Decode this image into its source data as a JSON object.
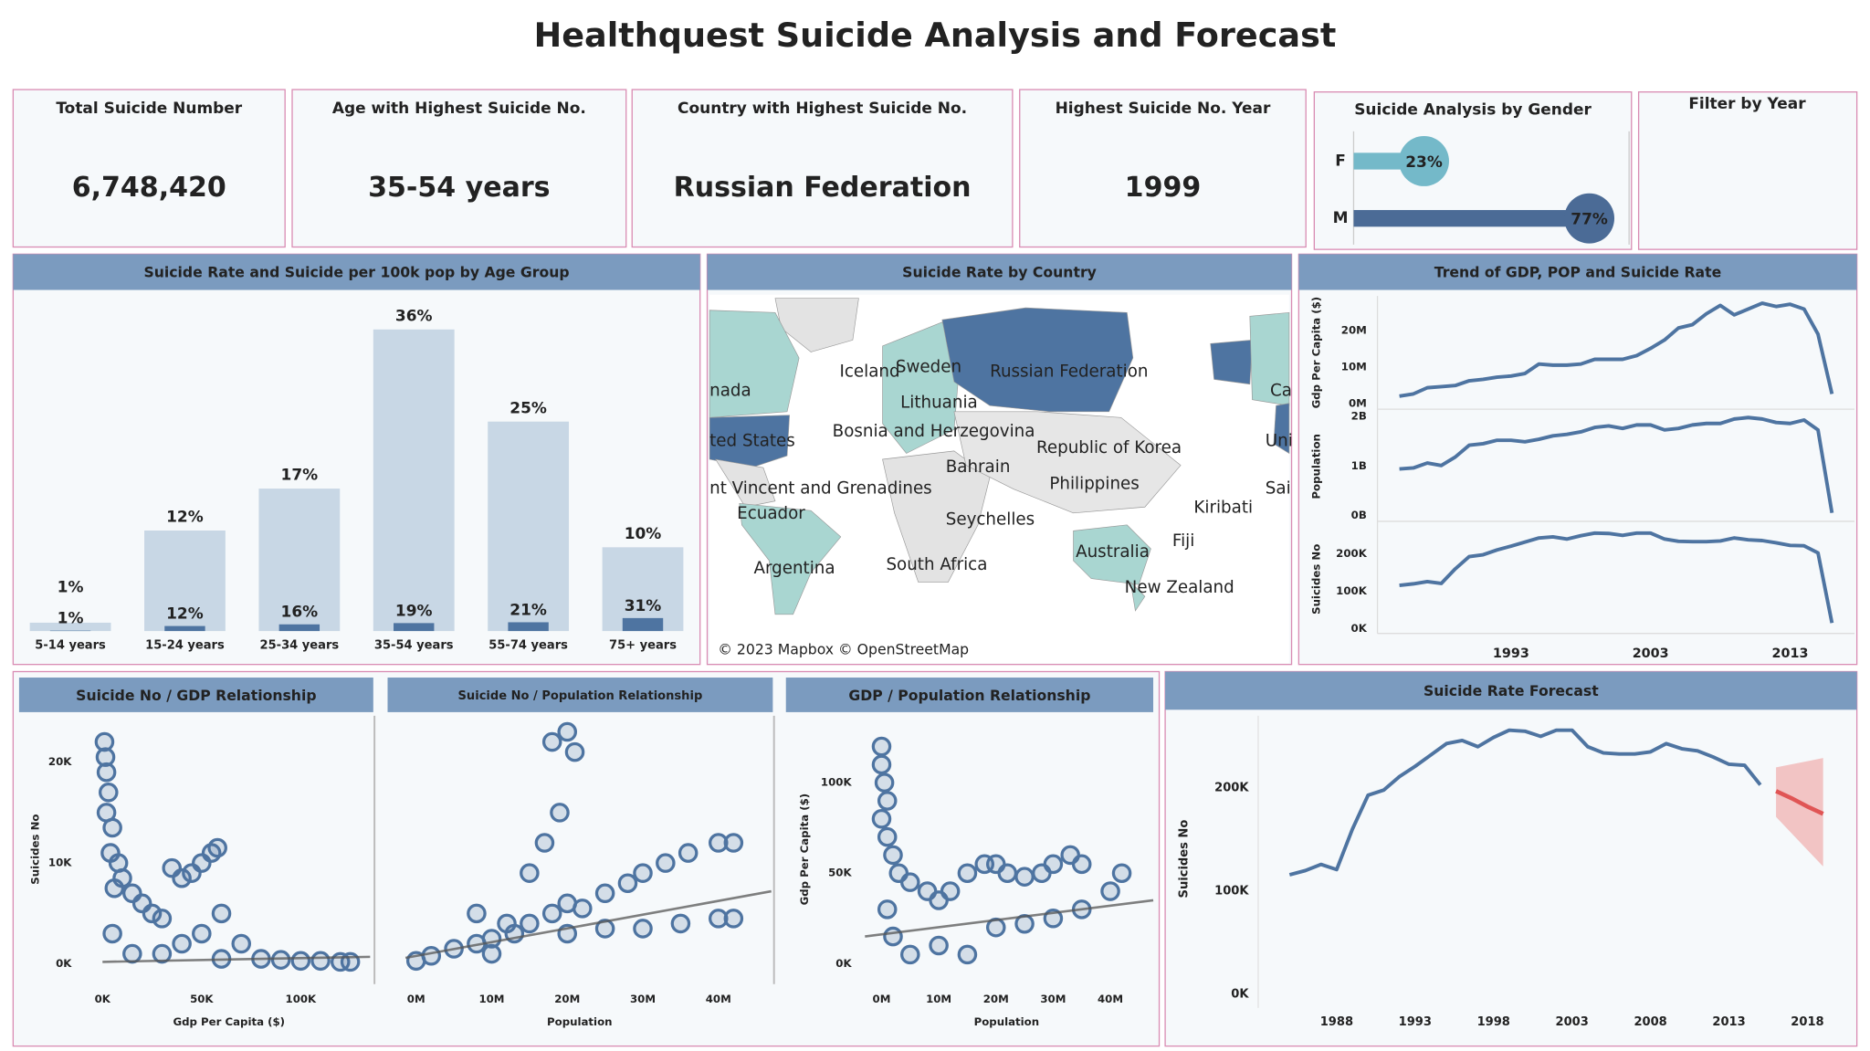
{
  "title": "Healthquest Suicide Analysis and Forecast",
  "kpis": [
    {
      "label": "Total Suicide Number",
      "value": "6,748,420"
    },
    {
      "label": "Age with Highest Suicide No.",
      "value": "35-54 years"
    },
    {
      "label": "Country with Highest Suicide No.",
      "value": "Russian Federation"
    },
    {
      "label": "Highest Suicide No. Year",
      "value": "1999"
    }
  ],
  "filter": {
    "title": "Filter by Year"
  },
  "chart_data": [
    {
      "type": "hbar",
      "title": "Suicide Analysis by Gender",
      "categories": [
        "F",
        "M"
      ],
      "values": [
        23,
        77
      ],
      "value_labels": [
        "23%",
        "77%"
      ],
      "colors": [
        "#74b9c9",
        "#4b6b96"
      ],
      "xlim": [
        0,
        90
      ]
    },
    {
      "type": "bar",
      "title": "Suicide Rate and Suicide per 100k pop by Age Group",
      "categories": [
        "5-14 years",
        "15-24 years",
        "25-34 years",
        "35-54 years",
        "55-74 years",
        "75+ years"
      ],
      "series": [
        {
          "color": "#c8d7e5",
          "values": [
            1,
            12,
            17,
            36,
            25,
            10
          ],
          "value_labels": [
            "1%",
            "12%",
            "17%",
            "36%",
            "25%",
            "10%"
          ]
        },
        {
          "color": "#4e74a1",
          "axis": "y2",
          "values": [
            1,
            12,
            16,
            19,
            21,
            31
          ],
          "value_labels": [
            "1%",
            "12%",
            "16%",
            "19%",
            "21%",
            "31%"
          ]
        }
      ],
      "ylim": [
        0,
        40
      ],
      "y2lim": [
        0,
        800
      ]
    },
    {
      "type": "map",
      "title": "Suicide Rate by Country",
      "labels": [
        "nada",
        "Iceland",
        "Sweden",
        "Russian Federation",
        "Ca",
        "Lithuania",
        "Bosnia and Herzegovina",
        "ted States",
        "Uni",
        "Republic of Korea",
        "Bahrain",
        "Philippines",
        "nt Vincent and Grenadines",
        "Sai",
        "Ecuador",
        "Kiribati",
        "Seychelles",
        "Fiji",
        "Australia",
        "Argentina",
        "South Africa",
        "New Zealand"
      ],
      "attribution": "© 2023 Mapbox © OpenStreetMap"
    },
    {
      "type": "line",
      "title": "Trend of GDP, POP and Suicide Rate",
      "color": "#4e74a1",
      "x": [
        1985,
        1986,
        1987,
        1988,
        1989,
        1990,
        1991,
        1992,
        1993,
        1994,
        1995,
        1996,
        1997,
        1998,
        1999,
        2000,
        2001,
        2002,
        2003,
        2004,
        2005,
        2006,
        2007,
        2008,
        2009,
        2010,
        2011,
        2012,
        2013,
        2014,
        2015,
        2016
      ],
      "xlim": [
        1983,
        2018
      ],
      "xticks": [
        1993,
        2003,
        2013
      ],
      "panels": [
        {
          "ylabel": "Gdp Per Capita ($)",
          "ylim": [
            -1600000,
            29500000
          ],
          "yticks": [
            {
              "value": 0,
              "label": "0M"
            },
            {
              "value": 10000000,
              "label": "10M"
            },
            {
              "value": 20000000,
              "label": "20M"
            }
          ],
          "values": [
            2000000,
            2600000,
            4300000,
            4600000,
            4900000,
            6200000,
            6600000,
            7200000,
            7500000,
            8200000,
            10800000,
            10500000,
            10500000,
            10800000,
            12100000,
            12100000,
            12100000,
            13100000,
            15100000,
            17400000,
            20700000,
            21600000,
            24600000,
            26900000,
            24300000,
            25900000,
            27500000,
            26600000,
            27200000,
            25900000,
            19000000,
            2600000
          ]
        },
        {
          "ylabel": "Population",
          "ylim": [
            -120000000,
            2100000000
          ],
          "yticks": [
            {
              "value": 0,
              "label": "0B"
            },
            {
              "value": 1000000000,
              "label": "1B"
            },
            {
              "value": 2000000000,
              "label": "2B"
            }
          ],
          "values": [
            940000000,
            960000000,
            1060000000,
            1010000000,
            1180000000,
            1420000000,
            1450000000,
            1520000000,
            1520000000,
            1490000000,
            1540000000,
            1610000000,
            1640000000,
            1690000000,
            1780000000,
            1810000000,
            1760000000,
            1830000000,
            1830000000,
            1730000000,
            1760000000,
            1830000000,
            1860000000,
            1860000000,
            1950000000,
            1980000000,
            1950000000,
            1880000000,
            1860000000,
            1930000000,
            1730000000,
            50000000
          ]
        },
        {
          "ylabel": "Suicides No",
          "ylim": [
            -13000,
            278000
          ],
          "yticks": [
            {
              "value": 0,
              "label": "0K"
            },
            {
              "value": 100000,
              "label": "100K"
            },
            {
              "value": 200000,
              "label": "200K"
            }
          ],
          "values": [
            116000,
            120000,
            126000,
            121000,
            160000,
            193000,
            198000,
            211000,
            221000,
            232000,
            243000,
            246000,
            240000,
            249000,
            256000,
            255000,
            250000,
            256000,
            256000,
            240000,
            234000,
            233000,
            233000,
            235000,
            243000,
            238000,
            236000,
            230000,
            223000,
            222000,
            203000,
            15000
          ]
        }
      ]
    },
    {
      "type": "scatter",
      "title": "Suicide No / GDP Relationship",
      "xlabel": "Gdp Per Capita ($)",
      "ylabel": "Suicides No",
      "color": "#4e74a1",
      "x": [
        1000,
        1500,
        2000,
        3000,
        2000,
        5000,
        4000,
        8000,
        10000,
        6000,
        15000,
        20000,
        25000,
        30000,
        35000,
        40000,
        45000,
        50000,
        55000,
        58000,
        60000,
        50000,
        40000,
        70000,
        80000,
        90000,
        100000,
        110000,
        120000,
        125000,
        5000,
        15000,
        30000,
        60000
      ],
      "values": [
        22000,
        20500,
        19000,
        17000,
        15000,
        13500,
        11000,
        10000,
        8500,
        7500,
        7000,
        6000,
        5000,
        4500,
        9500,
        8500,
        9000,
        10000,
        11000,
        11500,
        5000,
        3000,
        2000,
        2000,
        500,
        400,
        300,
        300,
        200,
        200,
        3000,
        1000,
        1000,
        500
      ],
      "xlim": [
        -9600,
        136000
      ],
      "ylim": [
        -2000,
        24600
      ],
      "xticks": [
        {
          "value": 0,
          "label": "0K"
        },
        {
          "value": 50000,
          "label": "50K"
        },
        {
          "value": 100000,
          "label": "100K"
        }
      ],
      "yticks": [
        {
          "value": 0,
          "label": "0K"
        },
        {
          "value": 10000,
          "label": "10K"
        },
        {
          "value": 20000,
          "label": "20K"
        }
      ],
      "trendline": {
        "x": [
          0,
          135000
        ],
        "values": [
          200,
          700
        ]
      }
    },
    {
      "type": "scatter",
      "title": "Suicide No / Population Relationship",
      "xlabel": "Population",
      "color": "#4e74a1",
      "x": [
        0,
        2000000,
        5000000,
        8000000,
        10000000,
        13000000,
        15000000,
        18000000,
        20000000,
        22000000,
        25000000,
        28000000,
        30000000,
        33000000,
        36000000,
        40000000,
        42000000,
        20000000,
        25000000,
        30000000,
        35000000,
        40000000,
        42000000,
        10000000,
        15000000,
        17000000,
        18000000,
        20000000,
        21000000,
        19000000,
        8000000,
        12000000
      ],
      "values": [
        300,
        800,
        1500,
        2000,
        2500,
        3000,
        4000,
        5000,
        6000,
        5500,
        7000,
        8000,
        9000,
        10000,
        11000,
        12000,
        12000,
        3000,
        3500,
        3500,
        4000,
        4500,
        4500,
        1000,
        9000,
        12000,
        22000,
        23000,
        21000,
        15000,
        5000,
        4000
      ],
      "xlim": [
        -3300000,
        47200000
      ],
      "ylim": [
        -2000,
        24600
      ],
      "xticks": [
        {
          "value": 0,
          "label": "0M"
        },
        {
          "value": 10000000,
          "label": "10M"
        },
        {
          "value": 20000000,
          "label": "20M"
        },
        {
          "value": 30000000,
          "label": "30M"
        },
        {
          "value": 40000000,
          "label": "40M"
        }
      ],
      "trendline": {
        "x": [
          -1400000,
          47000000
        ],
        "values": [
          600,
          7200
        ]
      }
    },
    {
      "type": "scatter",
      "title": "GDP / Population Relationship",
      "xlabel": "Population",
      "ylabel": "Gdp Per Capita ($)",
      "color": "#4e74a1",
      "x": [
        0,
        0,
        500000,
        1000000,
        0,
        1000000,
        2000000,
        3000000,
        5000000,
        8000000,
        10000000,
        12000000,
        15000000,
        18000000,
        20000000,
        22000000,
        25000000,
        28000000,
        30000000,
        33000000,
        35000000,
        20000000,
        25000000,
        30000000,
        35000000,
        40000000,
        42000000,
        10000000,
        15000000,
        5000000,
        2000000,
        1000000
      ],
      "values": [
        120000,
        110000,
        100000,
        90000,
        80000,
        70000,
        60000,
        50000,
        45000,
        40000,
        35000,
        40000,
        50000,
        55000,
        55000,
        50000,
        48000,
        50000,
        55000,
        60000,
        55000,
        20000,
        22000,
        25000,
        30000,
        40000,
        50000,
        10000,
        5000,
        5000,
        15000,
        30000
      ],
      "xlim": [
        -4000000,
        47500000
      ],
      "ylim": [
        -11300,
        137000
      ],
      "xticks": [
        {
          "value": 0,
          "label": "0M"
        },
        {
          "value": 10000000,
          "label": "10M"
        },
        {
          "value": 20000000,
          "label": "20M"
        },
        {
          "value": 30000000,
          "label": "30M"
        },
        {
          "value": 40000000,
          "label": "40M"
        }
      ],
      "yticks": [
        {
          "value": 0,
          "label": "0K"
        },
        {
          "value": 50000,
          "label": "50K"
        },
        {
          "value": 100000,
          "label": "100K"
        }
      ],
      "trendline": {
        "x": [
          -2900000,
          47500000
        ],
        "values": [
          15000,
          35000
        ]
      }
    },
    {
      "type": "line",
      "title": "Suicide Rate Forecast",
      "ylabel": "Suicides No",
      "color": "#4e74a1",
      "x": [
        1985,
        1986,
        1987,
        1988,
        1989,
        1990,
        1991,
        1992,
        1993,
        1994,
        1995,
        1996,
        1997,
        1998,
        1999,
        2000,
        2001,
        2002,
        2003,
        2004,
        2005,
        2006,
        2007,
        2008,
        2009,
        2010,
        2011,
        2012,
        2013,
        2014,
        2015
      ],
      "values": [
        116000,
        120000,
        126000,
        121000,
        160000,
        193000,
        198000,
        211000,
        221000,
        232000,
        243000,
        246000,
        240000,
        249000,
        256000,
        255000,
        250000,
        256000,
        256000,
        240000,
        234000,
        233000,
        233000,
        235000,
        243000,
        238000,
        236000,
        230000,
        223000,
        222000,
        203000
      ],
      "xlim": [
        1983,
        2021
      ],
      "ylim": [
        -13000,
        270000
      ],
      "xticks": [
        1988,
        1993,
        1998,
        2003,
        2008,
        2013,
        2018
      ],
      "yticks": [
        {
          "value": 0,
          "label": "0K"
        },
        {
          "value": 100000,
          "label": "100K"
        },
        {
          "value": 200000,
          "label": "200K"
        }
      ],
      "forecast": {
        "color": "#e05555",
        "band_color": "#f2c4c4",
        "x": [
          2016,
          2017,
          2018,
          2019
        ],
        "values": [
          197000,
          190000,
          182000,
          175000
        ],
        "lower": [
          172000,
          156000,
          140000,
          124000
        ],
        "upper": [
          220000,
          223000,
          226000,
          229000
        ]
      }
    }
  ]
}
